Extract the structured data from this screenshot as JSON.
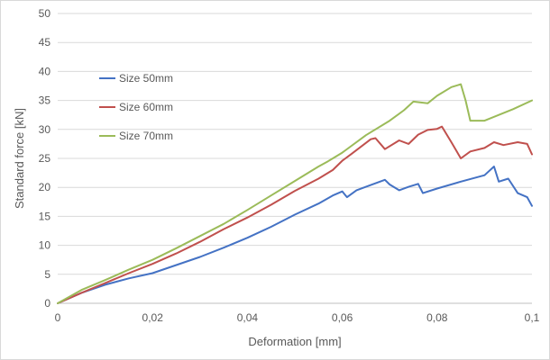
{
  "chart_data": {
    "type": "line",
    "xlabel": "Deformation [mm]",
    "ylabel": "Standard force [kN]",
    "xlim": [
      0,
      0.1
    ],
    "ylim": [
      0,
      50
    ],
    "x_ticks": [
      0,
      0.02,
      0.04,
      0.06,
      0.08,
      0.1
    ],
    "x_tick_labels": [
      "0",
      "0,02",
      "0,04",
      "0,06",
      "0,08",
      "0,1"
    ],
    "y_ticks": [
      0,
      5,
      10,
      15,
      20,
      25,
      30,
      35,
      40,
      45,
      50
    ],
    "y_tick_labels": [
      "0",
      "5",
      "10",
      "15",
      "20",
      "25",
      "30",
      "35",
      "40",
      "45",
      "50"
    ],
    "grid": "horizontal",
    "legend_position": "upper-left",
    "series": [
      {
        "name": "Size 50mm",
        "color": "#4472C4",
        "x": [
          0,
          0.005,
          0.01,
          0.015,
          0.02,
          0.025,
          0.03,
          0.035,
          0.04,
          0.045,
          0.05,
          0.055,
          0.058,
          0.06,
          0.061,
          0.063,
          0.066,
          0.069,
          0.07,
          0.072,
          0.074,
          0.076,
          0.077,
          0.08,
          0.085,
          0.09,
          0.092,
          0.093,
          0.095,
          0.097,
          0.099,
          0.1
        ],
        "y": [
          0,
          1.8,
          3.2,
          4.3,
          5.2,
          6.6,
          8.0,
          9.6,
          11.3,
          13.2,
          15.3,
          17.2,
          18.6,
          19.3,
          18.3,
          19.5,
          20.4,
          21.3,
          20.5,
          19.5,
          20.1,
          20.6,
          19.0,
          19.8,
          21.0,
          22.1,
          23.6,
          21.0,
          21.5,
          19.0,
          18.3,
          16.8
        ]
      },
      {
        "name": "Size 60mm",
        "color": "#C0504D",
        "x": [
          0,
          0.005,
          0.01,
          0.015,
          0.02,
          0.025,
          0.03,
          0.035,
          0.04,
          0.045,
          0.05,
          0.055,
          0.058,
          0.06,
          0.062,
          0.066,
          0.067,
          0.069,
          0.072,
          0.074,
          0.076,
          0.078,
          0.08,
          0.081,
          0.083,
          0.085,
          0.087,
          0.09,
          0.092,
          0.094,
          0.097,
          0.099,
          0.1
        ],
        "y": [
          0,
          1.8,
          3.5,
          5.2,
          6.8,
          8.6,
          10.6,
          12.8,
          14.8,
          17.0,
          19.4,
          21.5,
          23.0,
          24.6,
          25.8,
          28.3,
          28.5,
          26.6,
          28.1,
          27.5,
          29.1,
          29.9,
          30.1,
          30.5,
          27.8,
          25.0,
          26.2,
          26.8,
          27.8,
          27.3,
          27.8,
          27.5,
          25.7
        ]
      },
      {
        "name": "Size 70mm",
        "color": "#9BBB59",
        "x": [
          0,
          0.005,
          0.01,
          0.015,
          0.02,
          0.025,
          0.03,
          0.035,
          0.04,
          0.045,
          0.05,
          0.055,
          0.057,
          0.058,
          0.06,
          0.065,
          0.07,
          0.073,
          0.075,
          0.078,
          0.08,
          0.083,
          0.085,
          0.086,
          0.087,
          0.09,
          0.093,
          0.096,
          0.1
        ],
        "y": [
          0,
          2.3,
          4.0,
          5.8,
          7.5,
          9.5,
          11.6,
          13.7,
          16.1,
          18.6,
          21.1,
          23.6,
          24.5,
          25.0,
          26.0,
          29.0,
          31.5,
          33.3,
          34.8,
          34.5,
          35.8,
          37.3,
          37.8,
          35.0,
          31.5,
          31.5,
          32.5,
          33.5,
          35.0
        ]
      }
    ]
  }
}
